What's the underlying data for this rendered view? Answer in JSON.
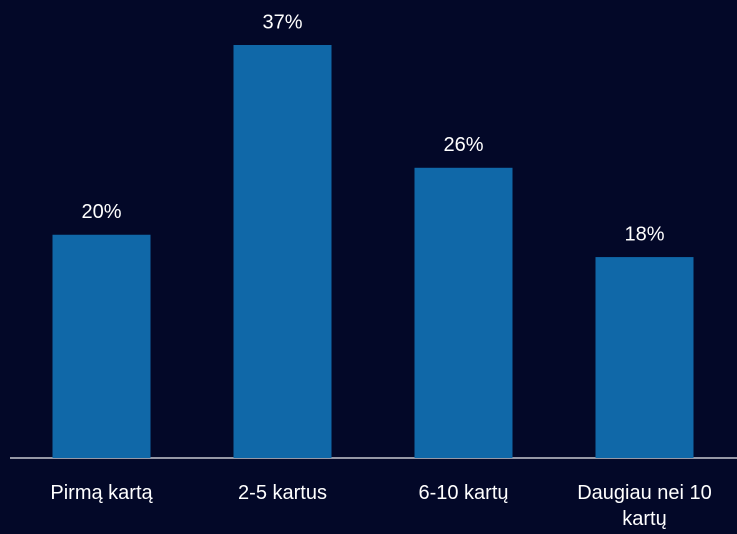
{
  "chart_data": {
    "type": "bar",
    "categories": [
      "Pirmą kartą",
      "2-5 kartus",
      "6-10 kartų",
      "Daugiau nei 10 kartų"
    ],
    "values": [
      20,
      37,
      26,
      18
    ],
    "value_labels": [
      "20%",
      "37%",
      "26%",
      "18%"
    ],
    "color": "#1068a8"
  }
}
